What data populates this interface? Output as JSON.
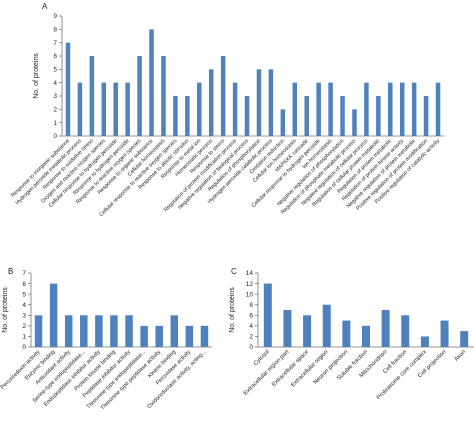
{
  "chart_data": [
    {
      "panel": "A",
      "type": "bar",
      "ylabel": "No. of proteins",
      "ylim": [
        0,
        9
      ],
      "yticks": [
        0,
        1,
        2,
        3,
        4,
        5,
        6,
        7,
        8,
        9
      ],
      "grid": false,
      "color": "#4f81bd",
      "categories": [
        "Response to inorganic substance",
        "Hydrogen peroxide metabolic process",
        "Response to oxidative stress",
        "Oxygen and reactive oxygen species",
        "Cellular response to hydrogen peroxide",
        "Response to hydrogen peroxide",
        "Response to reactive oxygen species",
        "Response to organic substance",
        "Cellular homeostasis",
        "Cellular response to reactive oxygen species",
        "Response to abiotic stimulus",
        "Response to metal ion",
        "Homeostatic process",
        "Response to stress",
        "Regulation of protein modification process",
        "Negative regulation of biological process",
        "Regulation of phosphorylation",
        "Hydrogen peroxide catabolic process",
        "Oxidation reduction",
        "Cellular ion homeostasis",
        "MAPKKK cascade",
        "Cellular response to hydrogen peroxide",
        "Ion homeostasis",
        "Negative regulation of phosphorylation",
        "Regulation of phosphate metabolic process",
        "Negative regulation of cellular process",
        "Regulation of cellular protein metabolic",
        "Regulation of protein metabolic",
        "Regulation of protein kinase activity",
        "Negative regulation of protein metabolic",
        "Positive regulation of protein modification",
        "Positive regulation of catalytic activity"
      ],
      "values": [
        7,
        4,
        6,
        4,
        4,
        4,
        6,
        8,
        6,
        3,
        3,
        4,
        5,
        6,
        4,
        3,
        5,
        5,
        2,
        4,
        3,
        4,
        4,
        3,
        2,
        4,
        3,
        4,
        4,
        4,
        3,
        4
      ]
    },
    {
      "panel": "B",
      "type": "bar",
      "ylabel": "No. of proteins",
      "ylim": [
        0,
        7
      ],
      "yticks": [
        0,
        1,
        2,
        3,
        4,
        5,
        6,
        7
      ],
      "grid": false,
      "color": "#4f81bd",
      "categories": [
        "Peroxiredoxin activity",
        "Enzyme binding",
        "Antioxidant activity",
        "Serine-type endopeptidase...",
        "Endopeptidase inhibitor activity",
        "Protein kinase binding",
        "Peptidase inhibitor activity",
        "Threonine-type endopeptidase...",
        "Threonine-type peptidase activity",
        "Kinase binding",
        "Peroxidase activity",
        "Oxidoreductase activity, acting..."
      ],
      "values": [
        3,
        6,
        3,
        3,
        3,
        3,
        3,
        2,
        2,
        3,
        2,
        2
      ]
    },
    {
      "panel": "C",
      "type": "bar",
      "ylabel": "No. of proteins",
      "ylim": [
        0,
        14
      ],
      "yticks": [
        0,
        2,
        4,
        6,
        8,
        10,
        12,
        14
      ],
      "grid": false,
      "color": "#4f81bd",
      "categories": [
        "Cytosol",
        "Extracellular region part",
        "Extracellular space",
        "Extracellular region",
        "Neuron projection",
        "Soluble fraction",
        "Mitochondrion",
        "Cell fraction",
        "Proteasome core complex",
        "Cell projection",
        "Axon"
      ],
      "values": [
        12,
        7,
        6,
        8,
        5,
        4,
        7,
        6,
        2,
        5,
        3
      ]
    }
  ]
}
